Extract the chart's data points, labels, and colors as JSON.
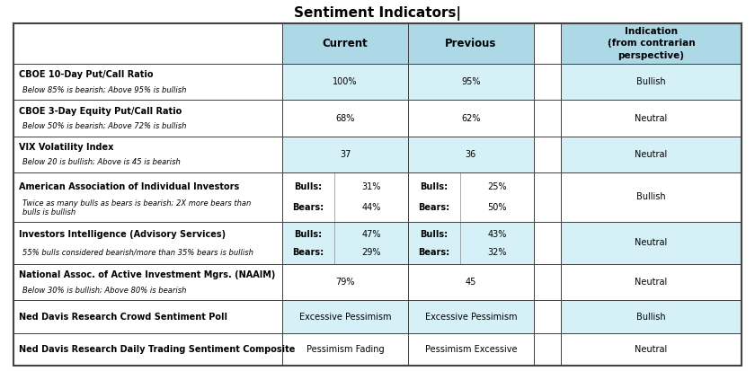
{
  "title": "Sentiment Indicators|",
  "title_fontsize": 11,
  "bg_color": "#ffffff",
  "header_bg": "#add8e6",
  "cell_bg_light": "#d6f0f8",
  "cell_bg_white": "#ffffff",
  "border_color": "#444444",
  "header_row": {
    "current_label": "Current",
    "previous_label": "Previous",
    "indication_label": "Indication\n(from contrarian\nperspective)"
  },
  "rows": [
    {
      "label_bold": "CBOE 10-Day Put/Call Ratio",
      "label_italic": "Below 85% is bearish; Above 95% is bullish",
      "current": "100%",
      "previous": "95%",
      "indication": "Bullish",
      "row_bg": "#d6f0f8",
      "split": false
    },
    {
      "label_bold": "CBOE 3-Day Equity Put/Call Ratio",
      "label_italic": "Below 50% is bearish; Above 72% is bullish",
      "current": "68%",
      "previous": "62%",
      "indication": "Neutral",
      "row_bg": "#ffffff",
      "split": false
    },
    {
      "label_bold": "VIX Volatility Index",
      "label_italic": "Below 20 is bullish; Above is 45 is bearish",
      "current": "37",
      "previous": "36",
      "indication": "Neutral",
      "row_bg": "#d6f0f8",
      "split": false
    },
    {
      "label_bold": "American Association of Individual Investors",
      "label_italic": "Twice as many bulls as bears is bearish; 2X more bears than\nbulls is bullish",
      "current_bulls": "31%",
      "current_bears": "44%",
      "previous_bulls": "25%",
      "previous_bears": "50%",
      "indication": "Bullish",
      "row_bg": "#ffffff",
      "split": true
    },
    {
      "label_bold": "Investors Intelligence (Advisory Services)",
      "label_italic": "55% bulls considered bearish/more than 35% bears is bullish",
      "current_bulls": "47%",
      "current_bears": "29%",
      "previous_bulls": "43%",
      "previous_bears": "32%",
      "indication": "Neutral",
      "row_bg": "#d6f0f8",
      "split": true
    },
    {
      "label_bold": "National Assoc. of Active Investment Mgrs. (NAAIM)",
      "label_italic": "Below 30% is bullish; Above 80% is bearish",
      "current": "79%",
      "previous": "45",
      "indication": "Neutral",
      "row_bg": "#ffffff",
      "split": false
    },
    {
      "label_bold": "Ned Davis Research Crowd Sentiment Poll",
      "label_italic": "",
      "current": "Excessive Pessimism",
      "previous": "Excessive Pessimism",
      "indication": "Bullish",
      "row_bg": "#d6f0f8",
      "split": false
    },
    {
      "label_bold": "Ned Davis Research Daily Trading Sentiment Composite",
      "label_italic": "",
      "current": "Pessimism Fading",
      "previous": "Pessimism Excessive",
      "indication": "Neutral",
      "row_bg": "#ffffff",
      "split": false
    }
  ]
}
